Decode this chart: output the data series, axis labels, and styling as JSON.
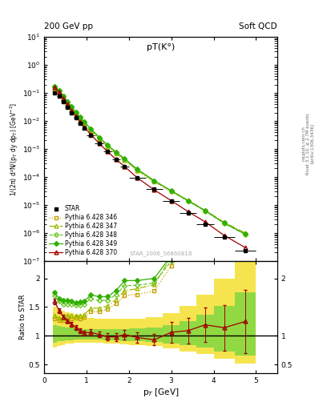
{
  "title_top_left": "200 GeV pp",
  "title_top_right": "Soft QCD",
  "plot_title": "pT(K°)",
  "xlabel": "p$_T$ [GeV]",
  "ylabel_main": "1/(2π) d²N/(p$_T$ dy dp$_T$) [GeV$^{-2}$]",
  "ylabel_ratio": "Ratio to STAR",
  "watermark": "STAR_2006_S6860818",
  "side_text1": "Rivet 3.1.10, ≥ 2.7M events",
  "side_text2": "[arXiv:1306.3436]",
  "side_text3": "mcplots.cern.ch",
  "star_x": [
    0.25,
    0.35,
    0.45,
    0.55,
    0.65,
    0.75,
    0.85,
    0.95,
    1.1,
    1.3,
    1.5,
    1.7,
    1.9,
    2.2,
    2.6,
    3.0,
    3.4,
    3.8,
    4.25,
    4.75
  ],
  "star_y": [
    0.1,
    0.075,
    0.049,
    0.031,
    0.02,
    0.013,
    0.0085,
    0.0057,
    0.0031,
    0.00155,
    0.00082,
    0.00043,
    0.00023,
    9.6e-05,
    3.7e-05,
    1.35e-05,
    5.3e-06,
    2.1e-06,
    7.2e-07,
    2.4e-07
  ],
  "star_yerr": [
    0.004,
    0.003,
    0.002,
    0.0013,
    0.0008,
    0.0005,
    0.0003,
    0.0002,
    0.0001,
    5e-05,
    2.5e-05,
    1.3e-05,
    7e-06,
    2.8e-06,
    1.1e-06,
    4.5e-07,
    2e-07,
    9e-08,
    3.5e-08,
    1.3e-08
  ],
  "star_xlo": [
    0.2,
    0.3,
    0.4,
    0.5,
    0.6,
    0.7,
    0.8,
    0.9,
    1.0,
    1.2,
    1.4,
    1.6,
    1.8,
    2.0,
    2.4,
    2.8,
    3.2,
    3.6,
    4.0,
    4.5
  ],
  "star_xhi": [
    0.3,
    0.4,
    0.5,
    0.6,
    0.7,
    0.8,
    0.9,
    1.0,
    1.2,
    1.4,
    1.6,
    1.8,
    2.0,
    2.4,
    2.8,
    3.2,
    3.6,
    4.0,
    4.5,
    5.0
  ],
  "p346_y": [
    0.13,
    0.095,
    0.062,
    0.04,
    0.026,
    0.017,
    0.011,
    0.0075,
    0.0044,
    0.0022,
    0.0012,
    0.00067,
    0.00039,
    0.000165,
    6.6e-05,
    3e-05,
    1.35e-05,
    6.2e-06,
    2.3e-06,
    9.5e-07
  ],
  "p346_color": "#c8a000",
  "p346_label": "Pythia 6.428 346",
  "p347_y": [
    0.135,
    0.098,
    0.064,
    0.042,
    0.027,
    0.0175,
    0.0115,
    0.0078,
    0.0046,
    0.0023,
    0.00125,
    0.0007,
    0.00041,
    0.000175,
    7e-05,
    3.2e-05,
    1.45e-05,
    6.5e-06,
    2.4e-06,
    1e-06
  ],
  "p347_color": "#a0b800",
  "p347_label": "Pythia 6.428 347",
  "p348_y": [
    0.17,
    0.12,
    0.076,
    0.048,
    0.031,
    0.02,
    0.013,
    0.0088,
    0.0051,
    0.0025,
    0.00133,
    0.00074,
    0.00043,
    0.00018,
    7.1e-05,
    3.1e-05,
    1.38e-05,
    6.1e-06,
    2.2e-06,
    8.8e-07
  ],
  "p348_color": "#70c830",
  "p348_label": "Pythia 6.428 348",
  "p349_y": [
    0.175,
    0.124,
    0.079,
    0.05,
    0.032,
    0.0205,
    0.0135,
    0.0091,
    0.0053,
    0.0026,
    0.00138,
    0.00077,
    0.00045,
    0.000188,
    7.4e-05,
    3.23e-05,
    1.43e-05,
    6.3e-06,
    2.28e-06,
    9.1e-07
  ],
  "p349_color": "#30b000",
  "p349_label": "Pythia 6.428 349",
  "p370_y": [
    0.16,
    0.108,
    0.065,
    0.039,
    0.024,
    0.0148,
    0.0093,
    0.006,
    0.0033,
    0.00158,
    0.0008,
    0.00042,
    0.000235,
    9.35e-05,
    3.45e-05,
    1.43e-05,
    5.8e-06,
    2.5e-06,
    8.2e-07,
    3e-07
  ],
  "p370_color": "#a00000",
  "p370_label": "Pythia 6.428 370",
  "ylim_main": [
    1e-07,
    10
  ],
  "ylim_ratio": [
    0.35,
    2.3
  ],
  "xlim": [
    0.0,
    5.5
  ],
  "r346": [
    1.3,
    1.27,
    1.27,
    1.29,
    1.3,
    1.31,
    1.29,
    1.32,
    1.42,
    1.42,
    1.46,
    1.56,
    1.7,
    1.72,
    1.78,
    2.22,
    2.55,
    2.95,
    3.19,
    3.96
  ],
  "r347": [
    1.35,
    1.31,
    1.31,
    1.35,
    1.35,
    1.35,
    1.35,
    1.37,
    1.48,
    1.48,
    1.52,
    1.63,
    1.78,
    1.82,
    1.89,
    2.37,
    2.74,
    3.1,
    3.33,
    4.17
  ],
  "r348": [
    1.7,
    1.6,
    1.55,
    1.55,
    1.55,
    1.54,
    1.53,
    1.55,
    1.65,
    1.61,
    1.62,
    1.72,
    1.87,
    1.88,
    1.92,
    2.3,
    2.6,
    2.9,
    3.06,
    3.67
  ],
  "r349": [
    1.75,
    1.65,
    1.61,
    1.61,
    1.6,
    1.58,
    1.59,
    1.6,
    1.71,
    1.68,
    1.68,
    1.79,
    1.96,
    1.96,
    2.0,
    2.39,
    2.7,
    3.0,
    3.17,
    3.79
  ],
  "r370": [
    1.6,
    1.44,
    1.33,
    1.26,
    1.2,
    1.14,
    1.09,
    1.05,
    1.06,
    1.02,
    0.98,
    0.98,
    1.02,
    0.97,
    0.93,
    1.06,
    1.09,
    1.19,
    1.14,
    1.25
  ],
  "band_yellow_lo": [
    0.8,
    0.82,
    0.84,
    0.86,
    0.87,
    0.88,
    0.88,
    0.88,
    0.88,
    0.88,
    0.87,
    0.86,
    0.85,
    0.84,
    0.82,
    0.78,
    0.73,
    0.68,
    0.6,
    0.52
  ],
  "band_yellow_hi": [
    1.5,
    1.47,
    1.44,
    1.41,
    1.39,
    1.37,
    1.35,
    1.33,
    1.31,
    1.3,
    1.29,
    1.29,
    1.29,
    1.3,
    1.33,
    1.4,
    1.52,
    1.72,
    2.0,
    2.4
  ],
  "band_green_lo": [
    0.88,
    0.9,
    0.91,
    0.92,
    0.92,
    0.93,
    0.93,
    0.93,
    0.93,
    0.93,
    0.92,
    0.92,
    0.91,
    0.9,
    0.89,
    0.87,
    0.83,
    0.79,
    0.73,
    0.65
  ],
  "band_green_hi": [
    1.18,
    1.17,
    1.16,
    1.15,
    1.14,
    1.13,
    1.12,
    1.12,
    1.11,
    1.11,
    1.11,
    1.11,
    1.12,
    1.13,
    1.15,
    1.19,
    1.26,
    1.36,
    1.52,
    1.75
  ]
}
